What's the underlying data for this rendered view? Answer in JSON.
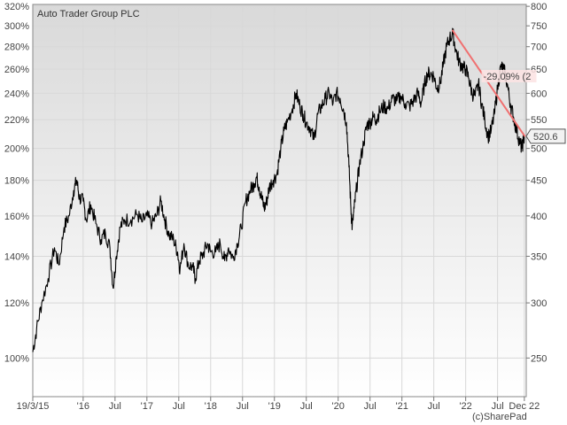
{
  "chart_data": {
    "type": "line",
    "title": "Auto Trader Group PLC",
    "credit": "(c)SharePad",
    "x_tick_labels": [
      {
        "label": "19/3/15",
        "t": 2015.21
      },
      {
        "label": "'16",
        "t": 2016.0
      },
      {
        "label": "Jul",
        "t": 2016.5
      },
      {
        "label": "'17",
        "t": 2017.0
      },
      {
        "label": "Jul",
        "t": 2017.5
      },
      {
        "label": "'18",
        "t": 2018.0
      },
      {
        "label": "Jul",
        "t": 2018.5
      },
      {
        "label": "'19",
        "t": 2019.0
      },
      {
        "label": "Jul",
        "t": 2019.5
      },
      {
        "label": "'20",
        "t": 2020.0
      },
      {
        "label": "Jul",
        "t": 2020.5
      },
      {
        "label": "'21",
        "t": 2021.0
      },
      {
        "label": "Jul",
        "t": 2021.5
      },
      {
        "label": "'22",
        "t": 2022.0
      },
      {
        "label": "Jul",
        "t": 2022.5
      },
      {
        "label": "Dec 22",
        "t": 2022.92
      }
    ],
    "x_range": [
      2015.21,
      2022.95
    ],
    "y_left_scale": "log",
    "y_left_ticks": [
      "100%",
      "120%",
      "140%",
      "160%",
      "180%",
      "200%",
      "220%",
      "240%",
      "260%",
      "280%",
      "300%",
      "320%"
    ],
    "y_left_values": [
      100,
      120,
      140,
      160,
      180,
      200,
      220,
      240,
      260,
      280,
      300,
      320
    ],
    "y_right_scale": "log",
    "y_right_ticks": [
      "250",
      "300",
      "350",
      "400",
      "450",
      "500",
      "550",
      "600",
      "650",
      "700",
      "750",
      "800"
    ],
    "y_right_values": [
      250,
      300,
      350,
      400,
      450,
      500,
      550,
      600,
      650,
      700,
      750,
      800
    ],
    "y_range_price": [
      220,
      805
    ],
    "series": [
      {
        "unit": "GBp",
        "color": "#000000",
        "points": [
          [
            2015.21,
            255
          ],
          [
            2015.27,
            275
          ],
          [
            2015.35,
            300
          ],
          [
            2015.45,
            325
          ],
          [
            2015.55,
            360
          ],
          [
            2015.62,
            340
          ],
          [
            2015.7,
            385
          ],
          [
            2015.78,
            400
          ],
          [
            2015.85,
            435
          ],
          [
            2015.9,
            450
          ],
          [
            2015.94,
            425
          ],
          [
            2016.0,
            420
          ],
          [
            2016.05,
            395
          ],
          [
            2016.12,
            415
          ],
          [
            2016.2,
            390
          ],
          [
            2016.28,
            370
          ],
          [
            2016.35,
            378
          ],
          [
            2016.42,
            360
          ],
          [
            2016.47,
            315
          ],
          [
            2016.52,
            350
          ],
          [
            2016.58,
            385
          ],
          [
            2016.65,
            395
          ],
          [
            2016.75,
            395
          ],
          [
            2016.85,
            402
          ],
          [
            2016.92,
            392
          ],
          [
            2017.0,
            400
          ],
          [
            2017.08,
            390
          ],
          [
            2017.15,
            400
          ],
          [
            2017.22,
            420
          ],
          [
            2017.28,
            395
          ],
          [
            2017.35,
            375
          ],
          [
            2017.42,
            370
          ],
          [
            2017.48,
            355
          ],
          [
            2017.52,
            335
          ],
          [
            2017.58,
            365
          ],
          [
            2017.65,
            340
          ],
          [
            2017.72,
            338
          ],
          [
            2017.76,
            325
          ],
          [
            2017.82,
            345
          ],
          [
            2017.88,
            352
          ],
          [
            2017.95,
            365
          ],
          [
            2018.0,
            355
          ],
          [
            2018.08,
            355
          ],
          [
            2018.15,
            365
          ],
          [
            2018.22,
            345
          ],
          [
            2018.28,
            360
          ],
          [
            2018.35,
            348
          ],
          [
            2018.42,
            365
          ],
          [
            2018.48,
            385
          ],
          [
            2018.55,
            420
          ],
          [
            2018.62,
            435
          ],
          [
            2018.68,
            445
          ],
          [
            2018.72,
            455
          ],
          [
            2018.76,
            440
          ],
          [
            2018.8,
            425
          ],
          [
            2018.84,
            410
          ],
          [
            2018.88,
            420
          ],
          [
            2018.92,
            440
          ],
          [
            2018.98,
            450
          ],
          [
            2019.04,
            460
          ],
          [
            2019.1,
            500
          ],
          [
            2019.15,
            530
          ],
          [
            2019.2,
            545
          ],
          [
            2019.28,
            570
          ],
          [
            2019.34,
            600
          ],
          [
            2019.4,
            575
          ],
          [
            2019.45,
            560
          ],
          [
            2019.5,
            545
          ],
          [
            2019.56,
            535
          ],
          [
            2019.62,
            515
          ],
          [
            2019.68,
            560
          ],
          [
            2019.74,
            575
          ],
          [
            2019.8,
            590
          ],
          [
            2019.86,
            600
          ],
          [
            2019.92,
            580
          ],
          [
            2019.97,
            600
          ],
          [
            2020.03,
            590
          ],
          [
            2020.08,
            570
          ],
          [
            2020.13,
            545
          ],
          [
            2020.17,
            470
          ],
          [
            2020.2,
            410
          ],
          [
            2020.22,
            385
          ],
          [
            2020.25,
            410
          ],
          [
            2020.29,
            440
          ],
          [
            2020.33,
            470
          ],
          [
            2020.4,
            510
          ],
          [
            2020.45,
            540
          ],
          [
            2020.5,
            545
          ],
          [
            2020.55,
            555
          ],
          [
            2020.6,
            550
          ],
          [
            2020.65,
            565
          ],
          [
            2020.72,
            575
          ],
          [
            2020.78,
            570
          ],
          [
            2020.85,
            590
          ],
          [
            2020.92,
            585
          ],
          [
            2020.98,
            595
          ],
          [
            2021.05,
            580
          ],
          [
            2021.12,
            575
          ],
          [
            2021.18,
            585
          ],
          [
            2021.25,
            600
          ],
          [
            2021.3,
            580
          ],
          [
            2021.35,
            615
          ],
          [
            2021.4,
            640
          ],
          [
            2021.45,
            640
          ],
          [
            2021.5,
            635
          ],
          [
            2021.55,
            610
          ],
          [
            2021.6,
            620
          ],
          [
            2021.65,
            660
          ],
          [
            2021.7,
            700
          ],
          [
            2021.75,
            720
          ],
          [
            2021.8,
            730
          ],
          [
            2021.85,
            690
          ],
          [
            2021.9,
            665
          ],
          [
            2021.95,
            655
          ],
          [
            2022.0,
            650
          ],
          [
            2022.05,
            630
          ],
          [
            2022.1,
            600
          ],
          [
            2022.15,
            595
          ],
          [
            2022.2,
            620
          ],
          [
            2022.25,
            580
          ],
          [
            2022.3,
            550
          ],
          [
            2022.35,
            520
          ],
          [
            2022.4,
            530
          ],
          [
            2022.45,
            560
          ],
          [
            2022.5,
            610
          ],
          [
            2022.55,
            655
          ],
          [
            2022.6,
            650
          ],
          [
            2022.65,
            620
          ],
          [
            2022.7,
            580
          ],
          [
            2022.75,
            555
          ],
          [
            2022.8,
            530
          ],
          [
            2022.85,
            510
          ],
          [
            2022.88,
            500
          ],
          [
            2022.92,
            520.6
          ]
        ]
      }
    ],
    "trendline": {
      "color": "#f07070",
      "label": "-29.09% (2",
      "start": [
        2021.79,
        740
      ],
      "end": [
        2022.93,
        520
      ]
    },
    "last_value_label": "520.6",
    "last_value": 520.6,
    "grid": true,
    "legend": "none"
  }
}
